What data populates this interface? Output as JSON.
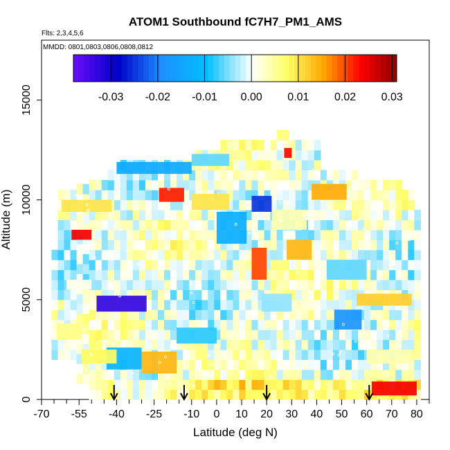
{
  "chart_data": {
    "type": "heatmap",
    "title": "ATOM1 Southbound fC7H7_PM1_AMS",
    "flights_note": "Flts: 2,3,4,5,6",
    "dates_note": "MMDD: 0801,0803,0806,0808,0812",
    "xlabel": "Latitude (deg N)",
    "ylabel": "Altitude (m)",
    "xlim": [
      -70,
      85
    ],
    "ylim": [
      0,
      18000
    ],
    "x_major_ticks": [
      -70,
      -55,
      -40,
      -25,
      -10,
      0,
      10,
      20,
      30,
      40,
      50,
      60,
      70,
      80
    ],
    "x_minor_ticks": [
      -65,
      -60,
      -50,
      -45,
      -35,
      -30,
      -20,
      -15,
      -5,
      5,
      15,
      25,
      35,
      45,
      55,
      65,
      75,
      85
    ],
    "y_ticks": [
      0,
      5000,
      10000,
      15000
    ],
    "colorbar": {
      "range": [
        -0.038,
        0.031
      ],
      "ticks": [
        -0.03,
        -0.02,
        -0.01,
        0.0,
        0.01,
        0.02,
        0.03
      ],
      "tick_labels": [
        "-0.03",
        "-0.02",
        "-0.01",
        "0.00",
        "0.01",
        "0.02",
        "0.03"
      ],
      "colors": [
        "#6a0dfa",
        "#0000c8",
        "#1e90ff",
        "#00bfff",
        "#ffffff",
        "#ffff66",
        "#ffa500",
        "#ff0000",
        "#8b0000"
      ]
    },
    "arrows_latitude": [
      -41,
      -13,
      20,
      61
    ],
    "blocks": [
      {
        "lat": [
          -64,
          -54
        ],
        "alt": [
          3000,
          3800
        ],
        "v": 0.006
      },
      {
        "lat": [
          -60,
          -50
        ],
        "alt": [
          5500,
          6000
        ],
        "v": 0.001
      },
      {
        "lat": [
          -58,
          -50
        ],
        "alt": [
          8000,
          8500
        ],
        "v": 0.024
      },
      {
        "lat": [
          -62,
          -42
        ],
        "alt": [
          9400,
          10000
        ],
        "v": 0.01
      },
      {
        "lat": [
          -48,
          -28
        ],
        "alt": [
          4400,
          5200
        ],
        "v": -0.033
      },
      {
        "lat": [
          -44,
          -30
        ],
        "alt": [
          1500,
          2600
        ],
        "v": -0.012
      },
      {
        "lat": [
          -54,
          -40
        ],
        "alt": [
          1800,
          2500
        ],
        "v": 0.008
      },
      {
        "lat": [
          -30,
          -16
        ],
        "alt": [
          1300,
          2400
        ],
        "v": 0.014
      },
      {
        "lat": [
          -40,
          -10
        ],
        "alt": [
          11300,
          11900
        ],
        "v": -0.014
      },
      {
        "lat": [
          -23,
          -13
        ],
        "alt": [
          9900,
          10600
        ],
        "v": 0.022
      },
      {
        "lat": [
          -10,
          5
        ],
        "alt": [
          11700,
          12300
        ],
        "v": -0.006
      },
      {
        "lat": [
          -10,
          5
        ],
        "alt": [
          9500,
          10300
        ],
        "v": 0.01
      },
      {
        "lat": [
          0,
          12
        ],
        "alt": [
          7800,
          9400
        ],
        "v": -0.013
      },
      {
        "lat": [
          14,
          20
        ],
        "alt": [
          6000,
          7600
        ],
        "v": 0.02
      },
      {
        "lat": [
          14,
          22
        ],
        "alt": [
          9400,
          10200
        ],
        "v": -0.025
      },
      {
        "lat": [
          18,
          30
        ],
        "alt": [
          4400,
          5300
        ],
        "v": -0.004
      },
      {
        "lat": [
          22,
          36
        ],
        "alt": [
          8500,
          9500
        ],
        "v": 0.004
      },
      {
        "lat": [
          28,
          38
        ],
        "alt": [
          7000,
          8000
        ],
        "v": 0.014
      },
      {
        "lat": [
          27,
          30
        ],
        "alt": [
          12100,
          12600
        ],
        "v": 0.023
      },
      {
        "lat": [
          38,
          52
        ],
        "alt": [
          10000,
          10800
        ],
        "v": 0.015
      },
      {
        "lat": [
          47,
          58
        ],
        "alt": [
          3500,
          4500
        ],
        "v": -0.018
      },
      {
        "lat": [
          44,
          60
        ],
        "alt": [
          6000,
          7000
        ],
        "v": -0.006
      },
      {
        "lat": [
          56,
          78
        ],
        "alt": [
          4700,
          5300
        ],
        "v": 0.012
      },
      {
        "lat": [
          62,
          80
        ],
        "alt": [
          200,
          900
        ],
        "v": 0.024
      },
      {
        "lat": [
          60,
          78
        ],
        "alt": [
          1800,
          2500
        ],
        "v": 0.004
      },
      {
        "lat": [
          -16,
          0
        ],
        "alt": [
          2800,
          3600
        ],
        "v": -0.008
      }
    ]
  }
}
